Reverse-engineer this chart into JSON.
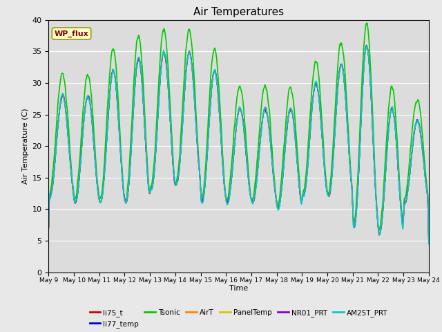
{
  "title": "Air Temperatures",
  "xlabel": "Time",
  "ylabel": "Air Temperature (C)",
  "ylim": [
    0,
    40
  ],
  "yticks": [
    0,
    5,
    10,
    15,
    20,
    25,
    30,
    35,
    40
  ],
  "x_tick_labels": [
    "May 9",
    "May 10",
    "May 11",
    "May 12",
    "May 13",
    "May 14",
    "May 15",
    "May 16",
    "May 17",
    "May 18",
    "May 19",
    "May 20",
    "May 21",
    "May 22",
    "May 23",
    "May 24"
  ],
  "bg_color": "#dcdcdc",
  "fig_color": "#e8e8e8",
  "series_order": [
    "li75_t",
    "li77_temp",
    "Tsonic",
    "AirT",
    "PanelTemp",
    "NR01_PRT",
    "AM25T_PRT"
  ],
  "series": {
    "li75_t": {
      "color": "#cc0000",
      "lw": 1.0
    },
    "li77_temp": {
      "color": "#0000cc",
      "lw": 1.0
    },
    "Tsonic": {
      "color": "#00cc00",
      "lw": 1.2
    },
    "AirT": {
      "color": "#ff8800",
      "lw": 1.0
    },
    "PanelTemp": {
      "color": "#cccc00",
      "lw": 1.0
    },
    "NR01_PRT": {
      "color": "#8800cc",
      "lw": 1.0
    },
    "AM25T_PRT": {
      "color": "#00cccc",
      "lw": 1.2
    }
  },
  "legend_box": {
    "text": "WP_flux",
    "facecolor": "#ffffcc",
    "edgecolor": "#999900",
    "textcolor": "#880000"
  },
  "grid_color": "#ffffff",
  "title_fontsize": 11,
  "n_days": 15,
  "day_mins": [
    12,
    11,
    11,
    11,
    13,
    14,
    11,
    11,
    11,
    10,
    12,
    12,
    7,
    6,
    11
  ],
  "day_maxs": [
    28,
    28,
    32,
    34,
    35,
    35,
    32,
    26,
    26,
    26,
    30,
    33,
    36,
    26,
    24
  ],
  "tsonic_extra": 3.5
}
